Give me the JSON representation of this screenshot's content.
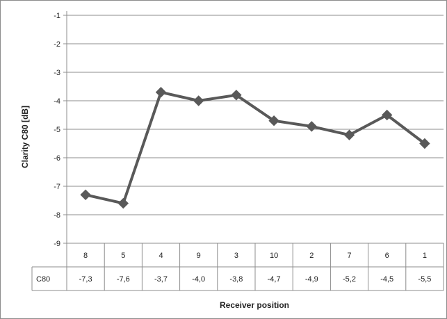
{
  "chart_data": {
    "type": "line",
    "title": "",
    "xlabel": "Receiver position",
    "ylabel": "Clarity C80 [dB]",
    "ylim": [
      -9,
      -1
    ],
    "yticks": [
      -1,
      -2,
      -3,
      -4,
      -5,
      -6,
      -7,
      -8,
      -9
    ],
    "grid": true,
    "categories": [
      "8",
      "5",
      "4",
      "9",
      "3",
      "10",
      "2",
      "7",
      "6",
      "1"
    ],
    "series": [
      {
        "name": "C80",
        "values": [
          -7.3,
          -7.6,
          -3.7,
          -4.0,
          -3.8,
          -4.7,
          -4.9,
          -5.2,
          -4.5,
          -5.5
        ],
        "value_labels": [
          "-7,3",
          "-7,6",
          "-3,7",
          "-4,0",
          "-3,8",
          "-4,7",
          "-4,9",
          "-5,2",
          "-4,5",
          "-5,5"
        ]
      }
    ],
    "colors": {
      "line": "#595959",
      "grid": "#8c8c8c",
      "text": "#222222"
    },
    "marker": "diamond-icon",
    "data_table": true
  }
}
